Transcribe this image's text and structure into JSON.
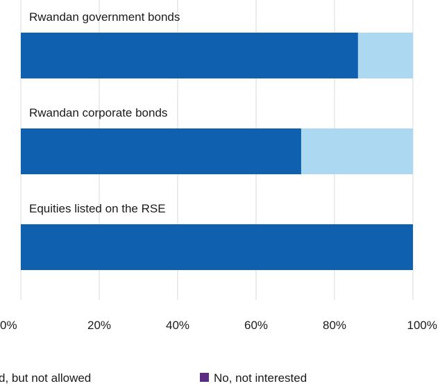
{
  "chart_data": {
    "type": "bar",
    "orientation": "horizontal",
    "stacked": true,
    "categories": [
      "Rwandan government bonds",
      "Rwandan corporate bonds",
      "Equities listed on the RSE"
    ],
    "series": [
      {
        "name": "",
        "values": [
          86,
          71.5,
          100
        ],
        "color": "#1060b0"
      },
      {
        "name": "d, but not allowed",
        "values": [
          14,
          28.5,
          0
        ],
        "color": "#add8f2"
      },
      {
        "name": "No, not interested",
        "values": [
          0,
          0,
          0
        ],
        "color": "#5b2d82"
      }
    ],
    "xlim": [
      0,
      100
    ],
    "ticks": [
      "0%",
      "20%",
      "40%",
      "60%",
      "80%",
      "100%"
    ],
    "tick_values": [
      0,
      20,
      40,
      60,
      80,
      100
    ],
    "grid": true,
    "legend_position": "bottom"
  }
}
